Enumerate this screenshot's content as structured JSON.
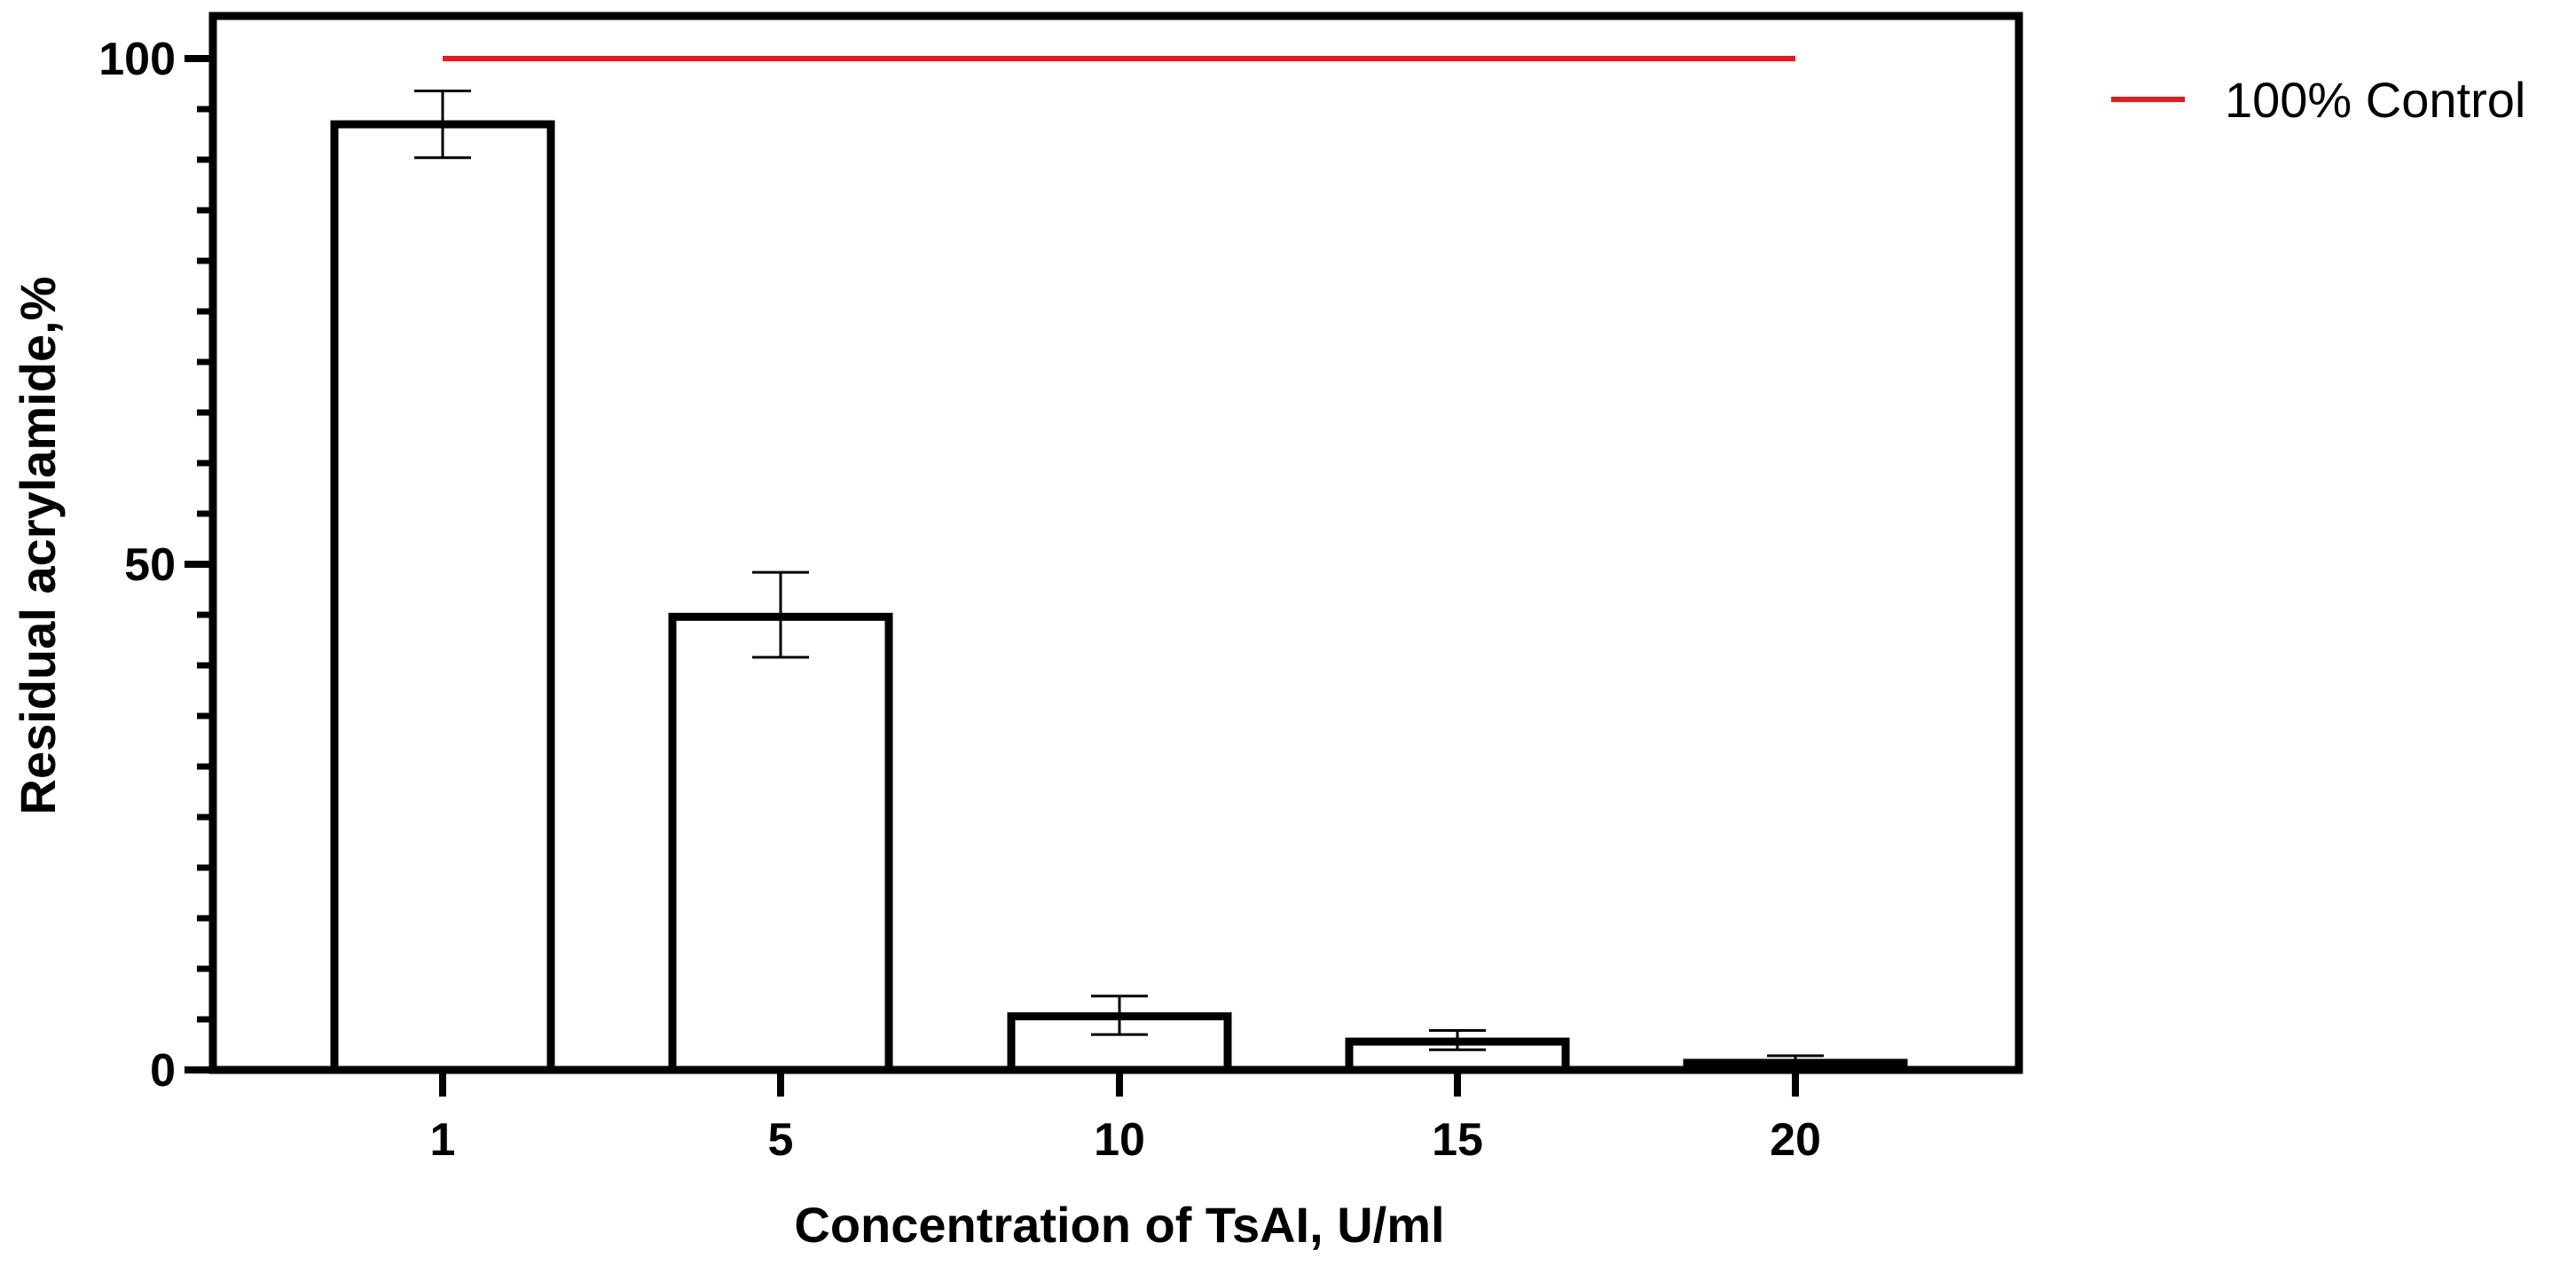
{
  "chart_data": {
    "type": "bar",
    "title": "",
    "xlabel": "Concentration of TsAI, U/ml",
    "ylabel": "Residual acrylamide,%",
    "categories": [
      "1",
      "5",
      "10",
      "15",
      "20"
    ],
    "series": [
      {
        "values": [
          93.5,
          44.8,
          5.3,
          2.8,
          0.7
        ],
        "error_low": [
          90.2,
          40.8,
          3.5,
          2.0,
          0.1
        ],
        "error_high": [
          96.8,
          49.2,
          7.3,
          3.9,
          1.4
        ]
      }
    ],
    "reference_line": {
      "name": "100% Control",
      "value": 100,
      "from_category": "1",
      "to_category": "20",
      "color": "#e8191c"
    },
    "ylim": [
      0,
      100
    ],
    "yticks_major": [
      0,
      50,
      100
    ],
    "yticks_major_labels": [
      "0",
      "50",
      "100"
    ],
    "yticks_minor_step": 5,
    "grid": false,
    "legend": {
      "placement": "top-right",
      "entries": [
        "100% Control"
      ]
    },
    "colors": {
      "bar_fill": "#ffffff",
      "bar_stroke": "#000000",
      "control_line": "#e8191c"
    }
  }
}
